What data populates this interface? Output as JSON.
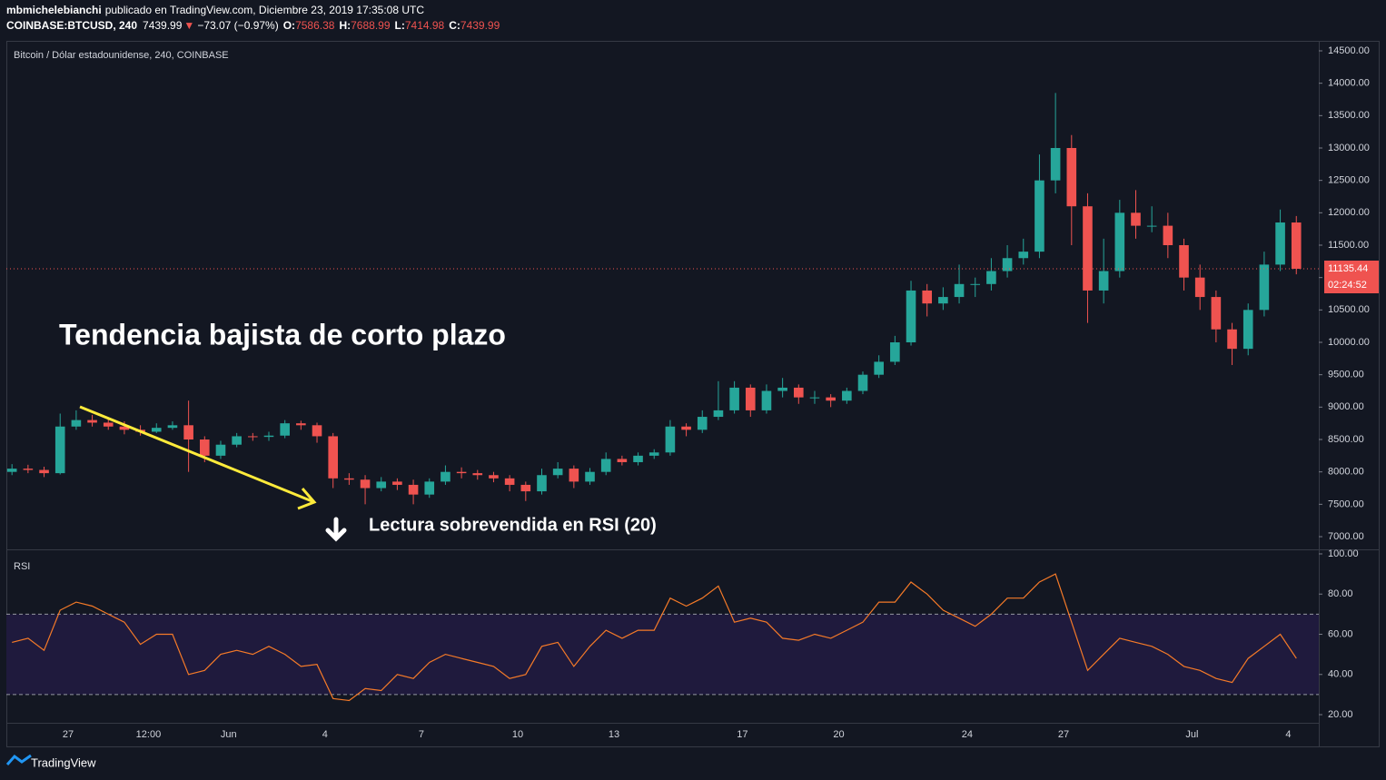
{
  "header": {
    "author": "mbmichelebianchi",
    "published": "publicado en TradingView.com, Diciembre 23, 2019 17:35:08 UTC",
    "symbol": "COINBASE:BTCUSD, 240",
    "price": "7439.99",
    "arrow": "▼",
    "change": "−73.07 (−0.97%)",
    "o_label": "O:",
    "o": "7586.38",
    "h_label": "H:",
    "h": "7688.99",
    "l_label": "L:",
    "l": "7414.98",
    "c_label": "C:",
    "c": "7439.99"
  },
  "chart_data": [
    {
      "type": "candlestick",
      "title": "Bitcoin / Dólar estadounidense, 240, COINBASE",
      "up_color": "#26a69a",
      "down_color": "#ef5350",
      "open": [
        8000,
        8050,
        8030,
        7980,
        8700,
        8800,
        8760,
        8700,
        8650,
        8620,
        8680,
        8720,
        8500,
        8250,
        8420,
        8550,
        8540,
        8560,
        8750,
        8720,
        8550,
        7900,
        7880,
        7750,
        7850,
        7800,
        7650,
        7850,
        8000,
        7980,
        7950,
        7900,
        7800,
        7700,
        7950,
        8050,
        7850,
        8000,
        8200,
        8150,
        8250,
        8300,
        8700,
        8650,
        8850,
        8950,
        9300,
        8950,
        9250,
        9300,
        9150,
        9150,
        9100,
        9250,
        9500,
        9700,
        10000,
        10800,
        10600,
        10700,
        10900,
        10900,
        11100,
        11300,
        11400,
        12500,
        13000,
        12100,
        10800,
        11100,
        12000,
        11800,
        11800,
        11500,
        11000,
        10700,
        10200,
        9900,
        10500,
        11200,
        11850
      ],
      "high": [
        8120,
        8110,
        8080,
        8900,
        8950,
        8880,
        8820,
        8780,
        8720,
        8750,
        8780,
        9100,
        8550,
        8480,
        8600,
        8600,
        8620,
        8800,
        8790,
        8760,
        8600,
        7980,
        7950,
        7920,
        7900,
        7880,
        7900,
        8100,
        8070,
        8030,
        8000,
        7950,
        7850,
        8050,
        8150,
        8100,
        8060,
        8300,
        8250,
        8300,
        8350,
        8800,
        8750,
        8950,
        9400,
        9400,
        9350,
        9350,
        9450,
        9350,
        9250,
        9200,
        9300,
        9550,
        9800,
        10100,
        10950,
        10900,
        10850,
        11200,
        11000,
        11300,
        11500,
        11600,
        12900,
        13850,
        13200,
        12300,
        11600,
        12200,
        12350,
        12100,
        12000,
        11600,
        11200,
        10800,
        10300,
        10600,
        11400,
        12050,
        11950
      ],
      "low": [
        7950,
        7980,
        7920,
        7960,
        8650,
        8700,
        8650,
        8580,
        8560,
        8600,
        8650,
        8000,
        8150,
        8200,
        8380,
        8480,
        8480,
        8520,
        8650,
        8450,
        7750,
        7800,
        7500,
        7700,
        7720,
        7500,
        7600,
        7800,
        7900,
        7880,
        7840,
        7700,
        7550,
        7650,
        7900,
        7750,
        7800,
        7950,
        8100,
        8100,
        8200,
        8250,
        8550,
        8600,
        8800,
        8900,
        8850,
        8900,
        9150,
        9050,
        9050,
        9000,
        9050,
        9200,
        9450,
        9650,
        9950,
        10400,
        10500,
        10600,
        10700,
        10800,
        11000,
        11200,
        11300,
        12300,
        11500,
        10300,
        10600,
        11000,
        11600,
        11700,
        11300,
        10800,
        10500,
        10000,
        9650,
        9800,
        10400,
        11100,
        11050
      ],
      "close": [
        8050,
        8030,
        7980,
        8700,
        8800,
        8760,
        8700,
        8650,
        8620,
        8680,
        8720,
        8500,
        8250,
        8420,
        8550,
        8540,
        8560,
        8750,
        8720,
        8550,
        7900,
        7880,
        7750,
        7850,
        7800,
        7650,
        7850,
        8000,
        7980,
        7950,
        7900,
        7800,
        7700,
        7950,
        8050,
        7850,
        8000,
        8200,
        8150,
        8250,
        8300,
        8700,
        8650,
        8850,
        8950,
        9300,
        8950,
        9250,
        9300,
        9150,
        9150,
        9100,
        9250,
        9500,
        9700,
        10000,
        10800,
        10600,
        10700,
        10900,
        10900,
        11100,
        11300,
        11400,
        12500,
        13000,
        12100,
        10800,
        11100,
        12000,
        11800,
        11800,
        11500,
        11000,
        10700,
        10200,
        9900,
        10500,
        11200,
        11850,
        11135.44
      ],
      "last_price": 11135.44,
      "last_price_label": "11135.44",
      "countdown": "02:24:52",
      "xlim": [
        0.15,
        81.9
      ],
      "ylim": [
        6804,
        14654
      ],
      "yticks": [
        {
          "value": 7000,
          "label": "7000.00"
        },
        {
          "value": 7500,
          "label": "7500.00"
        },
        {
          "value": 8000,
          "label": "8000.00"
        },
        {
          "value": 8500,
          "label": "8500.00"
        },
        {
          "value": 9000,
          "label": "9000.00"
        },
        {
          "value": 9500,
          "label": "9500.00"
        },
        {
          "value": 10000,
          "label": "10000.00"
        },
        {
          "value": 10500,
          "label": "10500.00"
        },
        {
          "value": 11000,
          "label": "11000.00"
        },
        {
          "value": 11500,
          "label": "11500.00"
        },
        {
          "value": 12000,
          "label": "12000.00"
        },
        {
          "value": 12500,
          "label": "12500.00"
        },
        {
          "value": 13000,
          "label": "13000.00"
        },
        {
          "value": 13500,
          "label": "13500.00"
        },
        {
          "value": 14000,
          "label": "14000.00"
        },
        {
          "value": 14500,
          "label": "14500.00"
        }
      ],
      "annotations": [
        "Tendencia bajista de corto plazo",
        "Lectura sobrevendida en RSI (20)"
      ]
    },
    {
      "type": "line",
      "title": "RSI",
      "color": "#f57a28",
      "band_color": "#1f1a3d",
      "values": [
        56,
        58,
        52,
        72,
        76,
        74,
        70,
        66,
        55,
        60,
        60,
        40,
        42,
        50,
        52,
        50,
        54,
        50,
        44,
        45,
        28,
        27,
        33,
        32,
        40,
        38,
        46,
        50,
        48,
        46,
        44,
        38,
        40,
        54,
        56,
        44,
        54,
        62,
        58,
        62,
        62,
        78,
        74,
        78,
        84,
        66,
        68,
        66,
        58,
        57,
        60,
        58,
        62,
        66,
        76,
        76,
        86,
        80,
        72,
        68,
        64,
        70,
        78,
        78,
        86,
        90,
        66,
        42,
        50,
        58,
        56,
        54,
        50,
        44,
        42,
        38,
        36,
        48,
        54,
        60,
        48
      ],
      "upper_band": 70,
      "lower_band": 30,
      "xlim": [
        0.15,
        81.9
      ],
      "ylim": [
        16.4,
        101.8
      ],
      "yticks": [
        {
          "value": 20,
          "label": "20.00"
        },
        {
          "value": 40,
          "label": "40.00"
        },
        {
          "value": 60,
          "label": "60.00"
        },
        {
          "value": 80,
          "label": "80.00"
        },
        {
          "value": 100,
          "label": "100.00"
        }
      ],
      "xticks": [
        {
          "value": 4,
          "label": "27"
        },
        {
          "value": 9,
          "label": "12:00"
        },
        {
          "value": 14,
          "label": "Jun"
        },
        {
          "value": 20,
          "label": "4"
        },
        {
          "value": 26,
          "label": "7"
        },
        {
          "value": 32,
          "label": "10"
        },
        {
          "value": 38,
          "label": "13"
        },
        {
          "value": 46,
          "label": "17"
        },
        {
          "value": 52,
          "label": "20"
        },
        {
          "value": 60,
          "label": "24"
        },
        {
          "value": 66,
          "label": "27"
        },
        {
          "value": 74,
          "label": "Jul"
        },
        {
          "value": 80,
          "label": "4"
        }
      ]
    }
  ],
  "footer": {
    "brand": "TradingView"
  }
}
